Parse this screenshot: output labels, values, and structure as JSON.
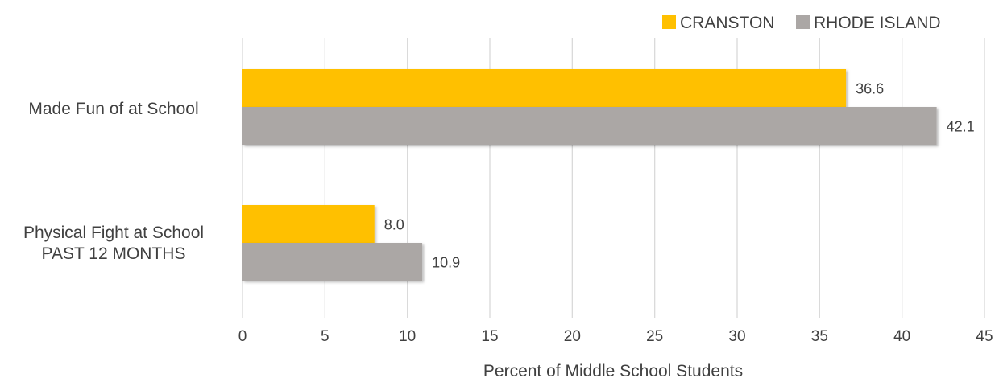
{
  "chart_data": {
    "type": "bar",
    "orientation": "horizontal",
    "categories": [
      "Made Fun of at School",
      "Physical Fight at School\nPAST 12 MONTHS"
    ],
    "series": [
      {
        "name": "CRANSTON",
        "values": [
          36.6,
          8.0
        ],
        "labels": [
          "36.6",
          "8.0"
        ],
        "color": "#FFC000"
      },
      {
        "name": "RHODE ISLAND",
        "values": [
          42.1,
          10.9
        ],
        "labels": [
          "42.1",
          "10.9"
        ],
        "color": "#ABA7A5"
      }
    ],
    "x_ticks": [
      "0",
      "5",
      "10",
      "15",
      "20",
      "25",
      "30",
      "35",
      "40",
      "45"
    ],
    "xlabel": "Percent of Middle School Students",
    "ylabel": "",
    "xlim": [
      0,
      45
    ],
    "grid": "vertical",
    "legend_position": "top-right"
  }
}
